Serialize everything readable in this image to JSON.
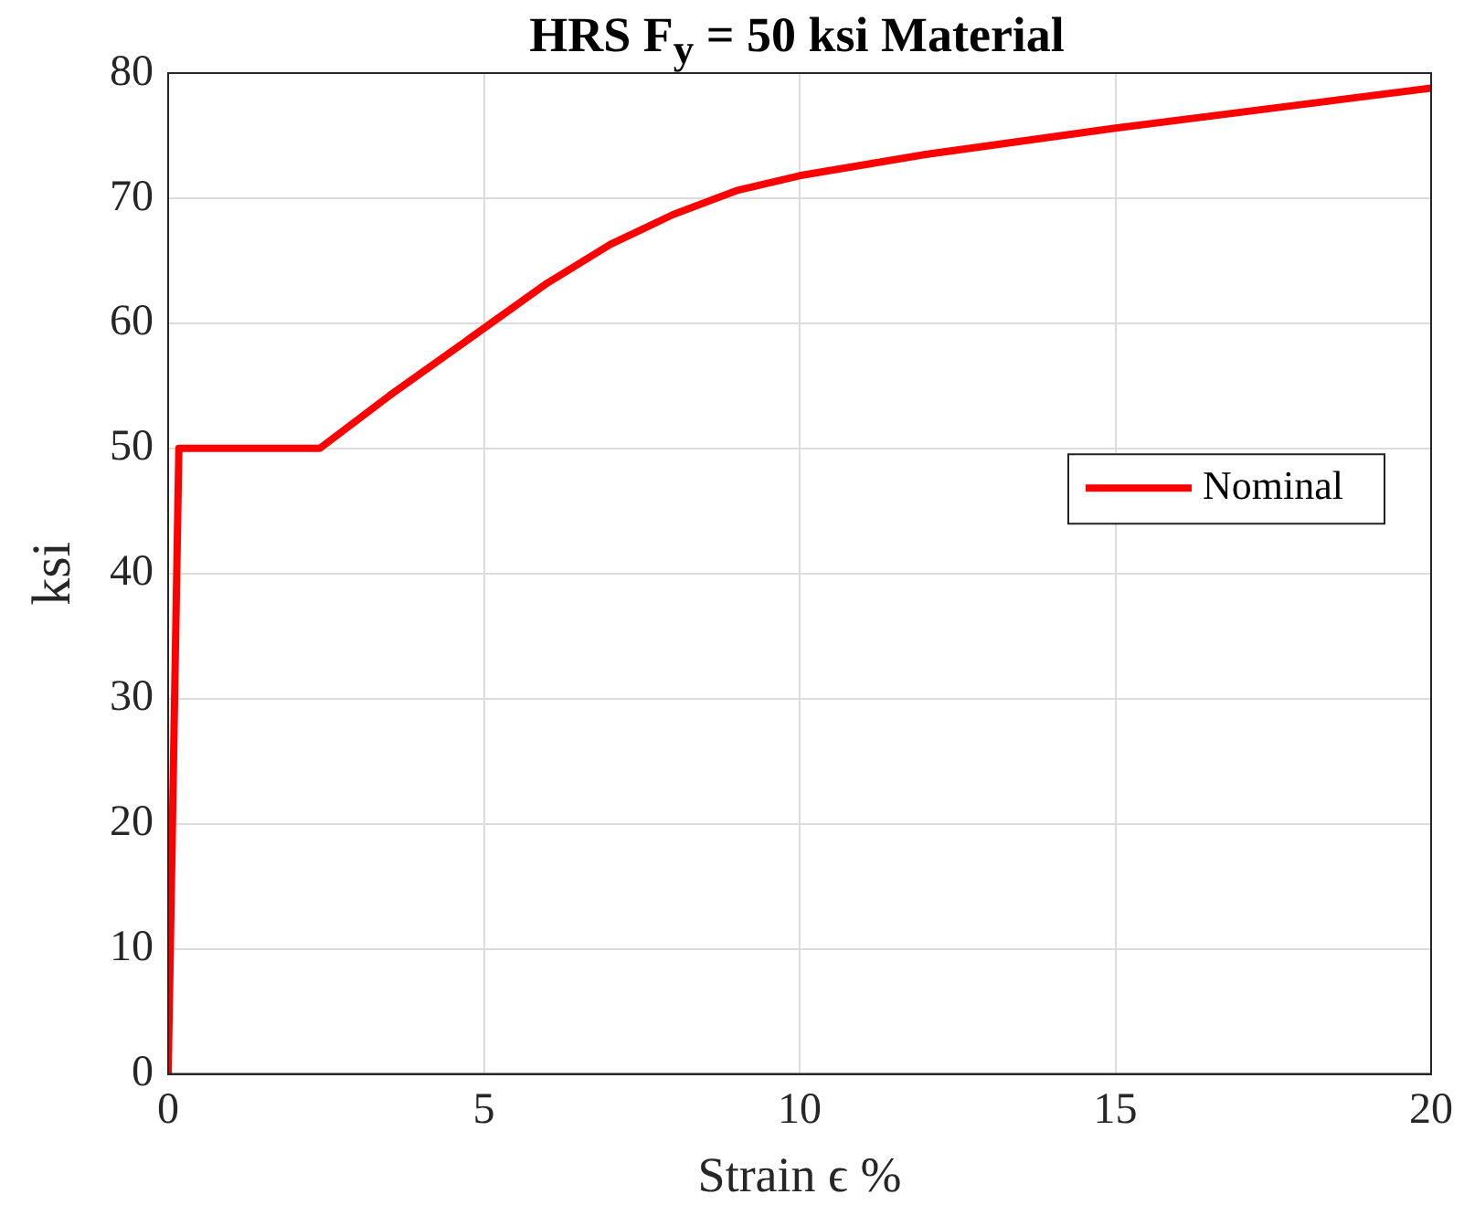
{
  "chart_data": {
    "type": "line",
    "title": "HRS F$_{y}$ = 50 ksi Material",
    "xlabel": "Strain ϵ %",
    "ylabel": "ksi",
    "x": [
      0,
      0.17,
      2.4,
      3.5,
      5,
      6,
      7,
      8,
      9,
      10,
      12,
      15,
      17.5,
      20
    ],
    "series": [
      {
        "name": "Nominal",
        "color": "#ff0000",
        "values": [
          0,
          50,
          50,
          54.2,
          59.6,
          63.2,
          66.3,
          68.7,
          70.6,
          71.8,
          73.5,
          75.6,
          77.2,
          78.8
        ]
      }
    ],
    "xlim": [
      0,
      20
    ],
    "xticks": [
      0,
      5,
      10,
      15,
      20
    ],
    "ylim": [
      0,
      80
    ],
    "yticks": [
      0,
      10,
      20,
      30,
      40,
      50,
      60,
      70,
      80
    ],
    "grid": true,
    "legend": "right",
    "line_style": "solid",
    "marker": "none"
  }
}
